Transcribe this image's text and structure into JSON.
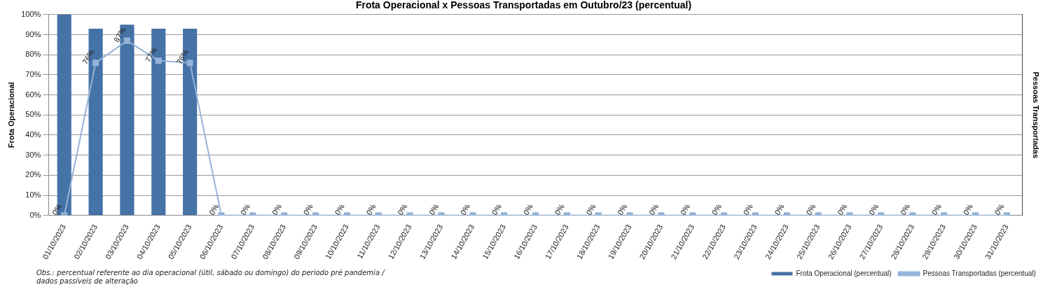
{
  "chart_data": {
    "type": "bar",
    "title": "Frota Operacional x Pessoas Transportadas em Outubro/23 (percentual)",
    "ylabel": "Frota Operacional",
    "y2label": "Pessoas Transportadas",
    "categories": [
      "01/10/2023",
      "02/10/2023",
      "03/10/2023",
      "04/10/2023",
      "05/10/2023",
      "06/10/2023",
      "07/10/2023",
      "08/10/2023",
      "09/10/2023",
      "10/10/2023",
      "11/10/2023",
      "12/10/2023",
      "13/10/2023",
      "14/10/2023",
      "15/10/2023",
      "16/10/2023",
      "17/10/2023",
      "18/10/2023",
      "19/10/2023",
      "20/10/2023",
      "21/10/2023",
      "22/10/2023",
      "23/10/2023",
      "24/10/2023",
      "25/10/2023",
      "26/10/2023",
      "27/10/2023",
      "28/10/2023",
      "29/10/2023",
      "30/10/2023",
      "31/10/2023"
    ],
    "series": [
      {
        "name": "Frota Operacional (percentual)",
        "color": "#4572a7",
        "values": [
          100,
          93,
          95,
          93,
          93,
          0,
          0,
          0,
          0,
          0,
          0,
          0,
          0,
          0,
          0,
          0,
          0,
          0,
          0,
          0,
          0,
          0,
          0,
          0,
          0,
          0,
          0,
          0,
          0,
          0,
          0
        ]
      },
      {
        "name": "Pessoas Transportadas (percentual)",
        "type": "line",
        "color": "#95b3d7",
        "marker": "square",
        "values": [
          0,
          76,
          87,
          77,
          76,
          0,
          0,
          0,
          0,
          0,
          0,
          0,
          0,
          0,
          0,
          0,
          0,
          0,
          0,
          0,
          0,
          0,
          0,
          0,
          0,
          0,
          0,
          0,
          0,
          0,
          0
        ],
        "value_labels": [
          "0%",
          "76%",
          "87%",
          "77%",
          "76%",
          "0%",
          "0%",
          "0%",
          "0%",
          "0%",
          "0%",
          "0%",
          "0%",
          "0%",
          "0%",
          "0%",
          "0%",
          "0%",
          "0%",
          "0%",
          "0%",
          "0%",
          "0%",
          "0%",
          "0%",
          "0%",
          "0%",
          "0%",
          "0%",
          "0%",
          "0%"
        ]
      }
    ],
    "ylim": [
      0,
      100
    ],
    "yticks": [
      {
        "value": 0,
        "label": "0%"
      },
      {
        "value": 10,
        "label": "10%"
      },
      {
        "value": 20,
        "label": "20%"
      },
      {
        "value": 30,
        "label": "30%"
      },
      {
        "value": 40,
        "label": "40%"
      },
      {
        "value": 50,
        "label": "50%"
      },
      {
        "value": 60,
        "label": "60%"
      },
      {
        "value": 70,
        "label": "70%"
      },
      {
        "value": 80,
        "label": "80%"
      },
      {
        "value": 90,
        "label": "90%"
      },
      {
        "value": 100,
        "label": "100%"
      }
    ],
    "grid": "y",
    "legend": "bottom",
    "annotations": [
      "Obs.: percentual referente ao dia operacional (útil, sábado ou domingo) do periodo pré pandemia / dados passíveis de alteração"
    ]
  }
}
